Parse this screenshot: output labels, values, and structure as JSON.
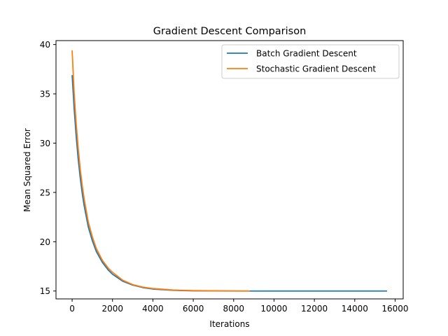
{
  "chart_data": {
    "type": "line",
    "title": "Gradient Descent Comparison",
    "xlabel": "Iterations",
    "ylabel": "Mean Squared Error",
    "xlim": [
      -800,
      16400
    ],
    "ylim": [
      14.2,
      40.4
    ],
    "xticks": [
      0,
      2000,
      4000,
      6000,
      8000,
      10000,
      12000,
      14000,
      16000
    ],
    "yticks": [
      15,
      20,
      25,
      30,
      35,
      40
    ],
    "legend": "top-right",
    "grid": false,
    "series": [
      {
        "name": "Batch Gradient Descent",
        "color": "#1f77b4",
        "x": [
          0,
          100,
          200,
          300,
          400,
          500,
          600,
          800,
          1000,
          1200,
          1500,
          1800,
          2000,
          2500,
          3000,
          3500,
          4000,
          5000,
          6000,
          7000,
          8000,
          9000,
          10000,
          11000,
          12000,
          13000,
          14000,
          15000,
          15600
        ],
        "y": [
          36.9,
          33.5,
          30.7,
          28.4,
          26.5,
          24.9,
          23.6,
          21.5,
          20.1,
          19.0,
          17.9,
          17.1,
          16.7,
          16.0,
          15.6,
          15.35,
          15.2,
          15.07,
          15.02,
          15.01,
          15.0,
          15.0,
          15.0,
          15.0,
          15.0,
          15.0,
          15.0,
          15.0,
          15.0
        ]
      },
      {
        "name": "Stochastic Gradient Descent",
        "color": "#ff7f0e",
        "x": [
          0,
          50,
          100,
          150,
          200,
          300,
          400,
          500,
          600,
          800,
          1000,
          1200,
          1500,
          1800,
          2000,
          2500,
          3000,
          3500,
          4000,
          5000,
          6000,
          7000,
          8000,
          8800
        ],
        "y": [
          39.4,
          37.2,
          35.1,
          33.5,
          32.0,
          29.5,
          27.4,
          25.7,
          24.3,
          22.0,
          20.5,
          19.3,
          18.1,
          17.3,
          16.9,
          16.1,
          15.65,
          15.4,
          15.25,
          15.1,
          15.04,
          15.02,
          15.01,
          15.0
        ]
      }
    ]
  }
}
